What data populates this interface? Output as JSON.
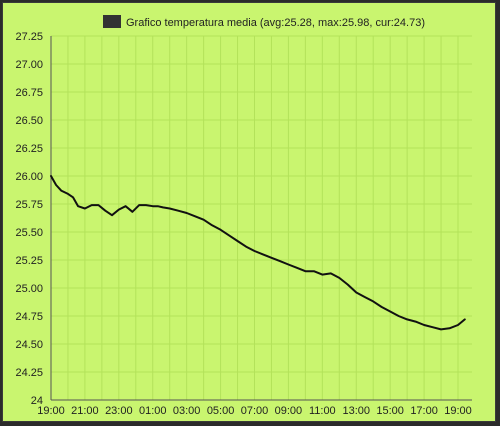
{
  "chart_data": {
    "type": "line",
    "title": "",
    "xlabel": "",
    "ylabel": "",
    "legend": {
      "label": "Grafico temperatura media (avg:25.28, max:25.98, cur:24.73)",
      "swatch_color": "#333333",
      "placement": "top"
    },
    "colors": {
      "background": "#c9f56f",
      "grid": "#b3e25a",
      "axis": "#555555",
      "line": "#111111",
      "page": "#2b2b2b"
    },
    "grid": true,
    "ylim": [
      24,
      27.25
    ],
    "y_ticks": [
      "24",
      "24.25",
      "24.50",
      "24.75",
      "25.00",
      "25.25",
      "25.50",
      "25.75",
      "26.00",
      "26.25",
      "26.50",
      "26.75",
      "27.00",
      "27.25"
    ],
    "x_ticks": [
      "19:00",
      "21:00",
      "23:00",
      "01:00",
      "03:00",
      "05:00",
      "07:00",
      "09:00",
      "11:00",
      "13:00",
      "15:00",
      "17:00",
      "19:00"
    ],
    "xlim_hours": [
      0,
      25
    ],
    "series": [
      {
        "name": "",
        "x_hours": [
          0,
          0.3,
          0.6,
          1.0,
          1.3,
          1.6,
          2.0,
          2.4,
          2.8,
          3.2,
          3.6,
          4.0,
          4.4,
          4.8,
          5.2,
          5.6,
          6.0,
          6.3,
          6.6,
          7.0,
          7.5,
          8.0,
          8.5,
          9.0,
          9.5,
          10.0,
          10.5,
          11.0,
          11.5,
          12.0,
          12.5,
          13.0,
          13.5,
          14.0,
          14.5,
          15.0,
          15.5,
          16.0,
          16.5,
          17.0,
          17.5,
          18.0,
          18.5,
          19.0,
          19.5,
          20.0,
          20.5,
          21.0,
          21.5,
          22.0,
          22.5,
          23.0,
          23.5,
          24.0,
          24.4
        ],
        "values": [
          26.0,
          25.92,
          25.87,
          25.84,
          25.81,
          25.73,
          25.71,
          25.74,
          25.74,
          25.69,
          25.65,
          25.7,
          25.73,
          25.68,
          25.74,
          25.74,
          25.73,
          25.73,
          25.72,
          25.71,
          25.69,
          25.67,
          25.64,
          25.61,
          25.56,
          25.52,
          25.47,
          25.42,
          25.37,
          25.33,
          25.3,
          25.27,
          25.24,
          25.21,
          25.18,
          25.15,
          25.15,
          25.12,
          25.13,
          25.09,
          25.03,
          24.96,
          24.92,
          24.88,
          24.83,
          24.79,
          24.75,
          24.72,
          24.7,
          24.67,
          24.65,
          24.63,
          24.64,
          24.67,
          24.72
        ]
      }
    ]
  }
}
